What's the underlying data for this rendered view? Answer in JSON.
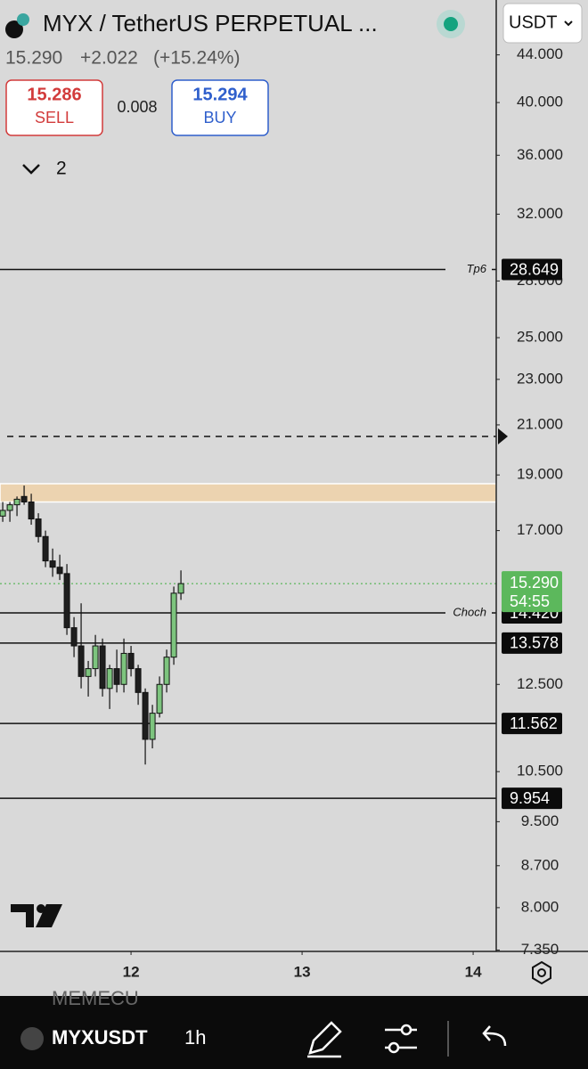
{
  "header": {
    "title": "MYX / TetherUS PERPETUAL ...",
    "price": "15.290",
    "change": "+2.022",
    "change_pct": "(+15.24%)",
    "currency": "USDT"
  },
  "order": {
    "sell_price": "15.286",
    "sell_label": "SELL",
    "spread": "0.008",
    "buy_price": "15.294",
    "buy_label": "BUY"
  },
  "indicators": {
    "count": "2"
  },
  "chart_data": {
    "type": "candlestick",
    "log_scale": true,
    "x": [
      11.25,
      11.2917,
      11.3333,
      11.375,
      11.4167,
      11.4583,
      11.5,
      11.5417,
      11.5833,
      11.625,
      11.6667,
      11.7083,
      11.75,
      11.7917,
      11.8333,
      11.875,
      11.9167,
      11.9583,
      12.0,
      12.0417,
      12.0833,
      12.125,
      12.1667,
      12.2083,
      12.25,
      12.2917
    ],
    "open": [
      17.5,
      17.7,
      17.9,
      18.2,
      18.0,
      17.4,
      16.8,
      16.0,
      15.8,
      15.6,
      14.0,
      13.5,
      12.7,
      12.9,
      13.5,
      12.4,
      12.9,
      12.5,
      13.3,
      12.9,
      12.3,
      11.2,
      11.8,
      12.5,
      13.2,
      15.0
    ],
    "high": [
      18.0,
      18.0,
      18.2,
      18.6,
      18.3,
      17.6,
      17.0,
      16.4,
      16.2,
      15.9,
      14.3,
      14.7,
      13.1,
      13.8,
      13.7,
      13.0,
      13.4,
      13.7,
      13.5,
      13.0,
      12.4,
      12.0,
      12.7,
      13.4,
      15.2,
      15.7
    ],
    "low": [
      17.3,
      17.3,
      17.5,
      17.9,
      17.2,
      16.6,
      15.8,
      15.5,
      15.4,
      13.8,
      13.2,
      12.4,
      12.2,
      12.7,
      12.2,
      11.9,
      12.3,
      12.3,
      12.7,
      12.0,
      10.65,
      11.0,
      11.7,
      12.3,
      13.0,
      14.8
    ],
    "close": [
      17.7,
      17.9,
      18.1,
      18.0,
      17.4,
      16.8,
      16.0,
      15.8,
      15.6,
      14.0,
      13.5,
      12.7,
      12.9,
      13.5,
      12.4,
      12.9,
      12.5,
      13.3,
      12.9,
      12.3,
      11.2,
      11.8,
      12.5,
      13.2,
      15.0,
      15.29
    ],
    "up_color": "#7dc47e",
    "down_color": "#1e1e1e",
    "xlim": [
      11.234,
      14.135
    ],
    "xticks": [
      12,
      13,
      14
    ],
    "ylim": [
      49.1,
      7.33
    ],
    "yticks": [
      {
        "value": 44,
        "label": "44.000"
      },
      {
        "value": 40,
        "label": "40.000"
      },
      {
        "value": 36,
        "label": "36.000"
      },
      {
        "value": 32,
        "label": "32.000"
      },
      {
        "value": 28,
        "label": "28.000"
      },
      {
        "value": 25,
        "label": "25.000"
      },
      {
        "value": 23,
        "label": "23.000"
      },
      {
        "value": 21,
        "label": "21.000"
      },
      {
        "value": 19,
        "label": "19.000"
      },
      {
        "value": 17,
        "label": "17.000"
      },
      {
        "value": 12.5,
        "label": "12.500"
      },
      {
        "value": 10.5,
        "label": "10.500"
      },
      {
        "value": 9.5,
        "label": "9.500"
      },
      {
        "value": 8.7,
        "label": "8.700"
      },
      {
        "value": 8,
        "label": "8.000"
      },
      {
        "value": 7.35,
        "label": "7.350"
      }
    ],
    "zone": [
      18.0,
      18.67
    ],
    "levels": [
      {
        "value": 28.649,
        "label": "28.649",
        "name": "Tp6"
      },
      {
        "value": 14.42,
        "label": "14.420",
        "name": "Choch"
      },
      {
        "value": 13.578,
        "label": "13.578"
      },
      {
        "value": 11.562,
        "label": "11.562"
      },
      {
        "value": 9.954,
        "label": "9.954"
      }
    ],
    "alert_level": 20.52,
    "last_price": {
      "value": 15.29,
      "label": "15.290",
      "countdown": "54:55"
    }
  },
  "toolbar": {
    "symbol": "MYXUSDT",
    "interval": "1h",
    "watermark": "MEMECU"
  }
}
